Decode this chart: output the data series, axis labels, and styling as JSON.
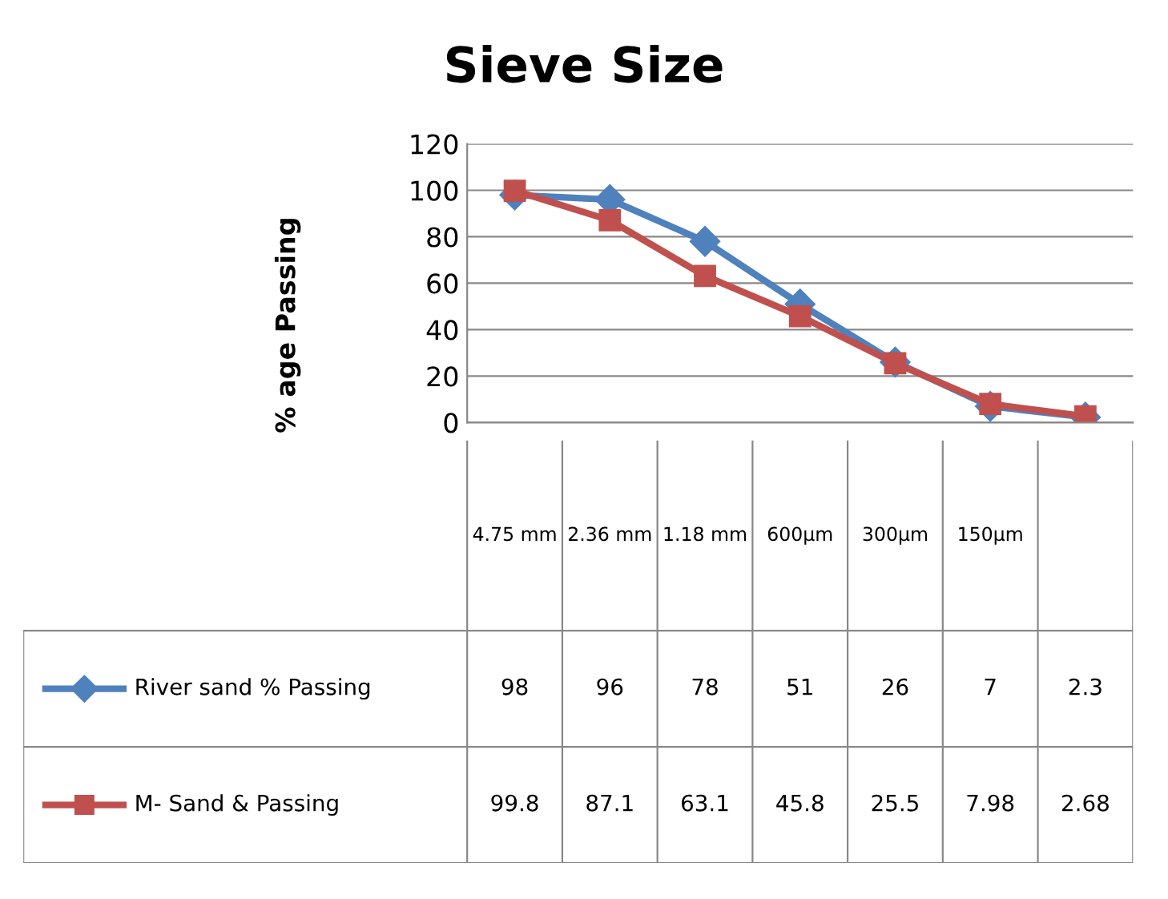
{
  "chart_data": {
    "type": "line",
    "title": "Sieve Size",
    "ylabel": "% age Passing",
    "categories": [
      "4.75 mm",
      "2.36 mm",
      "1.18 mm",
      "600µm",
      "300µm",
      "150µm",
      null
    ],
    "series": [
      {
        "name": "River sand % Passing",
        "color": "#4f81bd",
        "marker": "diamond",
        "values": [
          98,
          96,
          78,
          51,
          26,
          7,
          2.3
        ]
      },
      {
        "name": "M- Sand & Passing",
        "color": "#c0504d",
        "marker": "square",
        "values": [
          99.8,
          87.1,
          63.1,
          45.8,
          25.5,
          7.98,
          2.68
        ]
      }
    ],
    "ylim": [
      0,
      120
    ],
    "yticks": [
      0,
      20,
      40,
      60,
      80,
      100,
      120
    ],
    "grid": "y",
    "legend": "left",
    "data_labels": true
  }
}
